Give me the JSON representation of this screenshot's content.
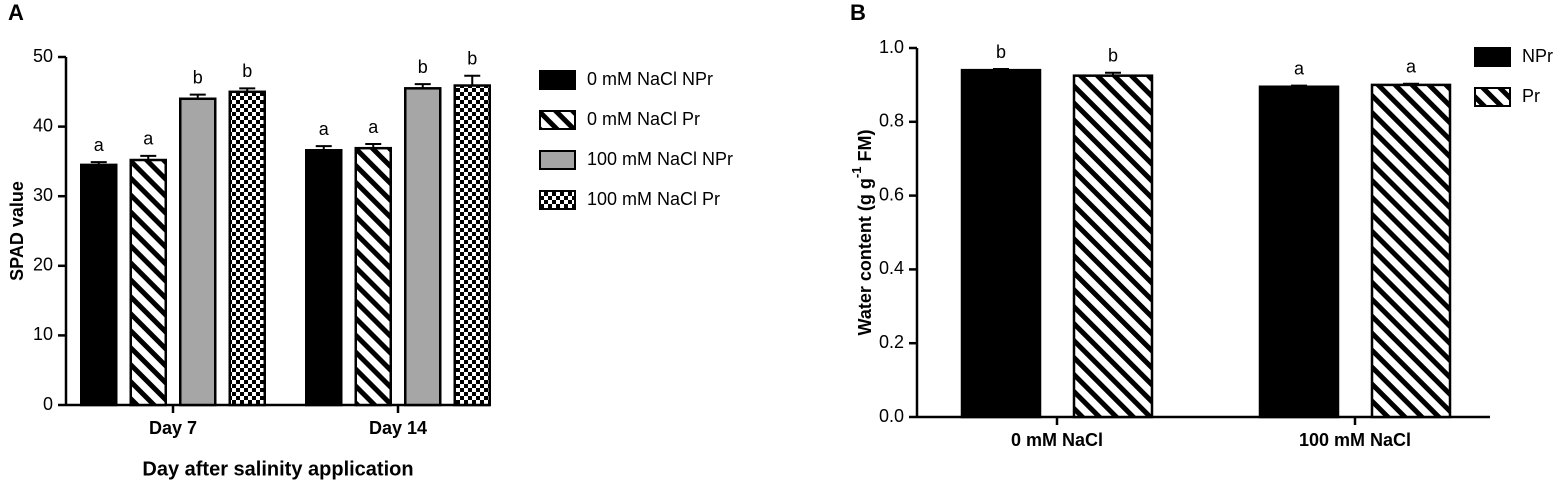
{
  "chart_data": [
    {
      "type": "bar",
      "panel": "A",
      "y_label": "SPAD value",
      "x_label": "Day after salinity application",
      "categories": [
        "Day 7",
        "Day 14"
      ],
      "series": [
        {
          "name": "0 mM NaCl NPr",
          "color": "#000000",
          "pattern": "solid",
          "values": [
            34.5,
            36.6
          ],
          "errors": [
            0.4,
            0.6
          ],
          "annotations": [
            "a",
            "a"
          ]
        },
        {
          "name": "0 mM NaCl Pr",
          "color": "#000000",
          "pattern": "hatch",
          "values": [
            35.2,
            36.9
          ],
          "errors": [
            0.6,
            0.6
          ],
          "annotations": [
            "a",
            "a"
          ]
        },
        {
          "name": "100 mM NaCl NPr",
          "color": "#a6a6a6",
          "pattern": "solid",
          "values": [
            44.0,
            45.5
          ],
          "errors": [
            0.6,
            0.6
          ],
          "annotations": [
            "b",
            "b"
          ]
        },
        {
          "name": "100 mM NaCl Pr",
          "color": "#000000",
          "pattern": "checker",
          "values": [
            45.0,
            45.9
          ],
          "errors": [
            0.5,
            1.4
          ],
          "annotations": [
            "b",
            "b"
          ]
        }
      ],
      "ylim": [
        0,
        50
      ],
      "yticks": [
        0,
        10,
        20,
        30,
        40,
        50
      ],
      "grid": false,
      "legend": "right"
    },
    {
      "type": "bar",
      "panel": "B",
      "y_label": [
        "Water content (g g",
        "-1",
        " FM)"
      ],
      "categories": [
        "0 mM NaCl",
        "100 mM NaCl"
      ],
      "series": [
        {
          "name": "NPr",
          "color": "#000000",
          "pattern": "solid",
          "values": [
            0.94,
            0.895
          ],
          "errors": [
            0.003,
            0.003
          ],
          "annotations": [
            "b",
            "a"
          ]
        },
        {
          "name": "Pr",
          "color": "#000000",
          "pattern": "hatch",
          "values": [
            0.925,
            0.9
          ],
          "errors": [
            0.008,
            0.003
          ],
          "annotations": [
            "b",
            "a"
          ]
        }
      ],
      "ylim": [
        0,
        1
      ],
      "yticks": [
        {
          "value": 0,
          "label": "0.0"
        },
        0.2,
        0.4,
        0.6,
        0.8,
        {
          "value": 1,
          "label": "1.0"
        }
      ],
      "grid": false,
      "legend": "right"
    }
  ]
}
